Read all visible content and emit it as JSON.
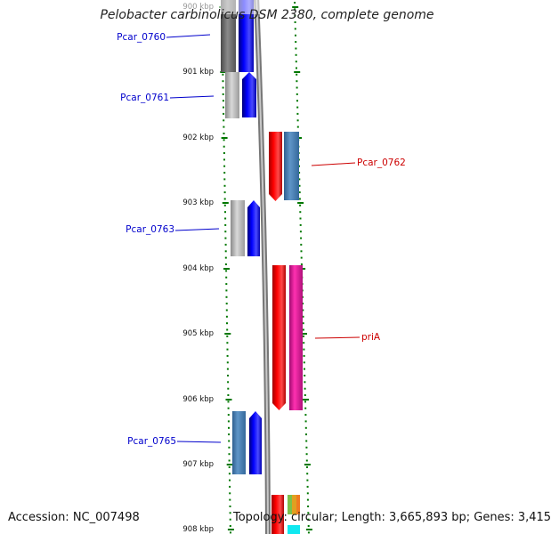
{
  "title": "Pelobacter carbinolicus DSM 2380, complete genome",
  "ruler": {
    "labels": [
      "900 kbp",
      "901 kbp",
      "902 kbp",
      "903 kbp",
      "904 kbp",
      "905 kbp",
      "906 kbp",
      "907 kbp",
      "908 kbp"
    ]
  },
  "genes": [
    {
      "name": "Pcar_0760",
      "strand": "forward",
      "label_color": "#0000cc"
    },
    {
      "name": "Pcar_0761",
      "strand": "forward",
      "label_color": "#0000cc"
    },
    {
      "name": "Pcar_0762",
      "strand": "reverse",
      "label_color": "#cc0000"
    },
    {
      "name": "Pcar_0763",
      "strand": "forward",
      "label_color": "#0000cc"
    },
    {
      "name": "priA",
      "strand": "reverse",
      "label_color": "#cc0000"
    },
    {
      "name": "Pcar_0765",
      "strand": "forward",
      "label_color": "#0000cc"
    }
  ],
  "colors": {
    "forward_cds": "#0000ff",
    "reverse_cds": "#ff0000",
    "tick": "#007700",
    "backbone": "#888888",
    "forward_label": "#0000cc",
    "reverse_label": "#cc0000"
  },
  "footer": {
    "accession": "Accession: NC_007498",
    "topology": "Topology: circular; Length: 3,665,893 bp; Genes: 3,415"
  }
}
